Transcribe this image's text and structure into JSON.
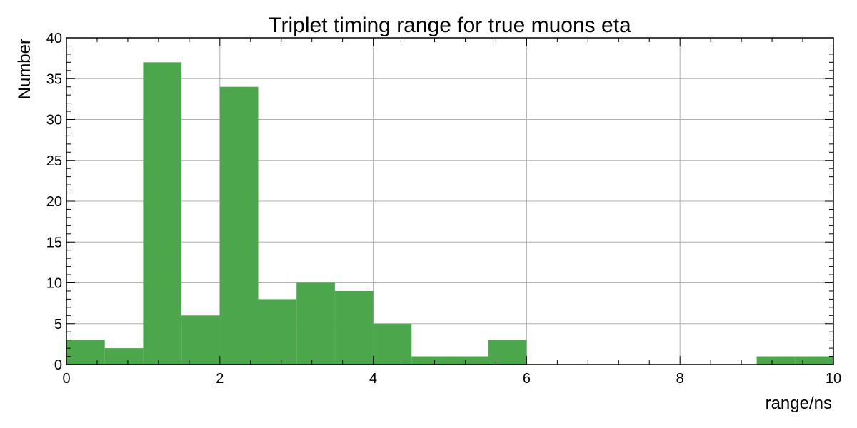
{
  "chart_data": {
    "type": "bar",
    "title": "Triplet timing range for true muons eta",
    "xlabel": "range/ns",
    "ylabel": "Number",
    "xlim": [
      0,
      10
    ],
    "ylim": [
      0,
      40
    ],
    "x_ticks": [
      "0",
      "2",
      "4",
      "6",
      "8",
      "10"
    ],
    "y_ticks": [
      "0",
      "5",
      "10",
      "15",
      "20",
      "25",
      "30",
      "35",
      "40"
    ],
    "bin_edges": [
      0,
      0.5,
      1,
      1.5,
      2,
      2.5,
      3,
      3.5,
      4,
      4.5,
      5,
      5.5,
      6,
      6.5,
      7,
      7.5,
      8,
      8.5,
      9,
      9.5,
      10
    ],
    "values": [
      3,
      2,
      37,
      6,
      34,
      8,
      10,
      9,
      5,
      1,
      1,
      3,
      0,
      0,
      0,
      0,
      0,
      0,
      1,
      1
    ],
    "grid": true,
    "bar_color": "#4ca64c"
  }
}
